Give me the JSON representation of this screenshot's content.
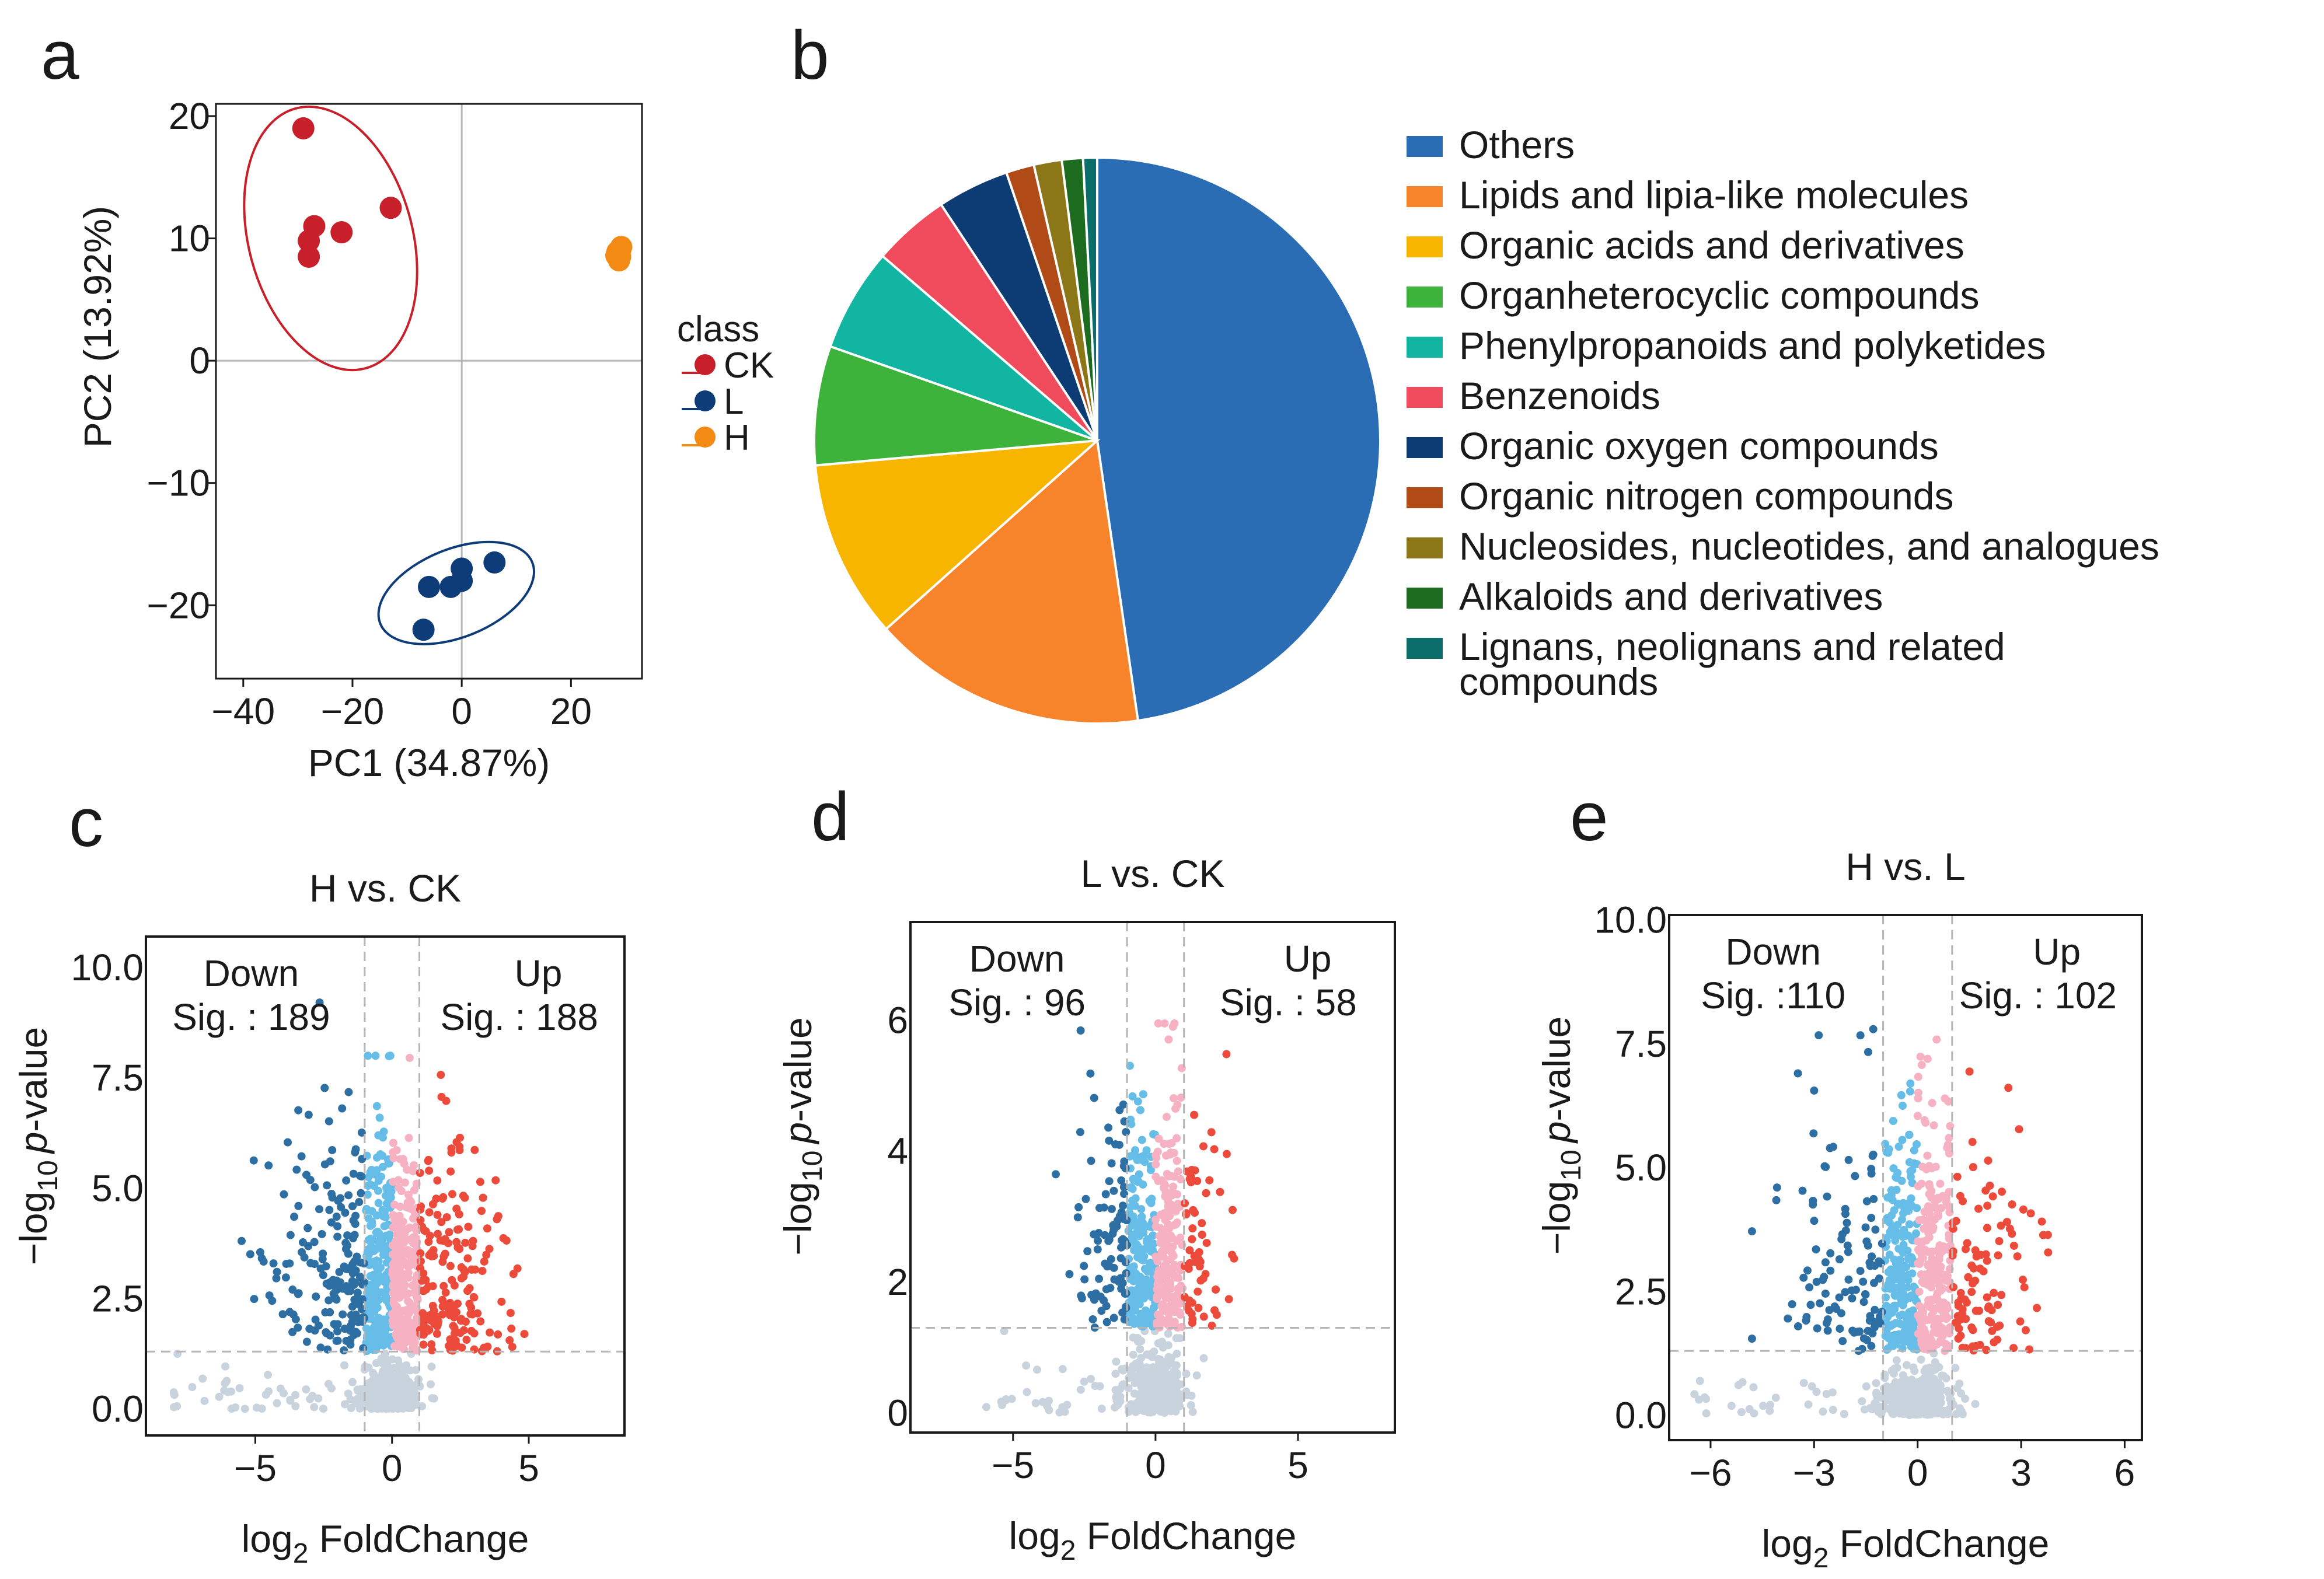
{
  "panels": {
    "a": "a",
    "b": "b",
    "c": "c",
    "d": "d",
    "e": "e"
  },
  "colors": {
    "ck": "#c8202a",
    "l": "#0d3c78",
    "h": "#f38a13",
    "down_strong": "#2e6fa3",
    "down_light": "#66bde8",
    "up_strong": "#ec4a3a",
    "up_light": "#f6b2c3",
    "ns": "#c9d3dd"
  },
  "pca": {
    "xlabel": "PC1 (34.87%)",
    "ylabel": "PC2 (13.92%)",
    "legend_title": "class",
    "xlim": [
      -45,
      33
    ],
    "ylim": [
      -26,
      21
    ],
    "xticks": [
      {
        "v": -40,
        "label": "−40"
      },
      {
        "v": -20,
        "label": "−20"
      },
      {
        "v": 0,
        "label": "0"
      },
      {
        "v": 20,
        "label": "20"
      }
    ],
    "yticks": [
      {
        "v": 20,
        "label": "20"
      },
      {
        "v": 10,
        "label": "10"
      },
      {
        "v": 0,
        "label": "0"
      },
      {
        "v": -10,
        "label": "−10"
      },
      {
        "v": -20,
        "label": "−20"
      }
    ],
    "groups": [
      {
        "name": "CK",
        "color": "#c8202a",
        "points": [
          [
            -29,
            19
          ],
          [
            -27,
            11
          ],
          [
            -22,
            10.5
          ],
          [
            -28,
            9.8
          ],
          [
            -28,
            8.5
          ],
          [
            -13,
            12.5
          ]
        ],
        "ellipse": {
          "cx": -24,
          "cy": 10,
          "rx": 15,
          "ry": 11,
          "rot": 15
        }
      },
      {
        "name": "L",
        "color": "#0d3c78",
        "points": [
          [
            -6,
            -18.5
          ],
          [
            -2,
            -18.5
          ],
          [
            0,
            -17
          ],
          [
            0,
            -18
          ],
          [
            6,
            -16.5
          ],
          [
            -7,
            -22
          ]
        ],
        "ellipse": {
          "cx": -1,
          "cy": -19,
          "rx": 15,
          "ry": 3.6,
          "rot": 22
        }
      },
      {
        "name": "H",
        "color": "#f38a13",
        "points": [
          [
            29,
            9
          ],
          [
            28.3,
            8.6
          ],
          [
            28.8,
            8.2
          ],
          [
            29.2,
            9.3
          ],
          [
            28.5,
            8.9
          ],
          [
            29,
            8.5
          ]
        ],
        "ellipse": {
          "cx": 28.8,
          "cy": 8.8,
          "rx": 1.2,
          "ry": 0.9,
          "rot": 0
        }
      }
    ]
  },
  "pie": {
    "items": [
      {
        "label": "Others",
        "value": 47.7,
        "color": "#2a6db5"
      },
      {
        "label": "Lipids and lipia-like molecules",
        "value": 15.7,
        "color": "#f7842a"
      },
      {
        "label": "Organic acids and derivatives",
        "value": 10.2,
        "color": "#f7b500"
      },
      {
        "label": "Organheterocyclic compounds",
        "value": 6.8,
        "color": "#3db33c"
      },
      {
        "label": "Phenylpropanoids and polyketides",
        "value": 5.9,
        "color": "#11b5a2"
      },
      {
        "label": "Benzenoids",
        "value": 4.4,
        "color": "#ef4b5c"
      },
      {
        "label": "Organic oxygen compounds",
        "value": 4.1,
        "color": "#0d3b73"
      },
      {
        "label": "Organic nitrogen compounds",
        "value": 1.6,
        "color": "#b04a17"
      },
      {
        "label": "Nucleosides, nucleotides, and analogues",
        "value": 1.6,
        "color": "#8c7718"
      },
      {
        "label": "Alkaloids and derivatives",
        "value": 1.2,
        "color": "#1c6b1f"
      },
      {
        "label": "Lignans, neolignans and related",
        "label2": "compounds",
        "value": 0.8,
        "color": "#0c6e6a"
      }
    ]
  },
  "chart_data": [
    {
      "type": "scatter",
      "title": "",
      "xlabel": "PC1 (34.87%)",
      "ylabel": "PC2 (13.92%)",
      "series": [
        {
          "name": "CK",
          "x": [
            -29,
            -27,
            -22,
            -28,
            -28,
            -13
          ],
          "y": [
            19,
            11,
            10.5,
            9.8,
            8.5,
            12.5
          ]
        },
        {
          "name": "L",
          "x": [
            -6,
            -2,
            0,
            0,
            6,
            -7
          ],
          "y": [
            -18.5,
            -18.5,
            -17,
            -18,
            -16.5,
            -22
          ]
        },
        {
          "name": "H",
          "x": [
            29,
            28.3,
            28.8,
            29.2,
            28.5,
            29
          ],
          "y": [
            9,
            8.6,
            8.2,
            9.3,
            8.9,
            8.5
          ]
        }
      ]
    },
    {
      "type": "pie",
      "categories": [
        "Others",
        "Lipids and lipia-like molecules",
        "Organic acids and derivatives",
        "Organheterocyclic compounds",
        "Phenylpropanoids and polyketides",
        "Benzenoids",
        "Organic oxygen compounds",
        "Organic nitrogen compounds",
        "Nucleosides, nucleotides, and analogues",
        "Alkaloids and derivatives",
        "Lignans, neolignans and related compounds"
      ],
      "values": [
        47.7,
        15.7,
        10.2,
        6.8,
        5.9,
        4.4,
        4.1,
        1.6,
        1.6,
        1.2,
        0.8
      ]
    },
    {
      "type": "scatter",
      "title": "H vs. CK",
      "xlabel": "log2 FoldChange",
      "ylabel": "−log10 p-value",
      "xlim": [
        -9,
        8.5
      ],
      "ylim": [
        -0.6,
        10.7
      ],
      "thresholds": {
        "fc": 1,
        "p": 1.3
      },
      "annotations": {
        "down_label": "Down",
        "down_sig": "Sig. : 189",
        "up_label": "Up",
        "up_sig": "Sig. : 188"
      }
    },
    {
      "type": "scatter",
      "title": "L vs. CK",
      "xlabel": "log2 FoldChange",
      "ylabel": "−log10 p-value",
      "xlim": [
        -8.6,
        8.4
      ],
      "ylim": [
        -0.3,
        7.5
      ],
      "thresholds": {
        "fc": 1,
        "p": 1.3
      },
      "annotations": {
        "down_label": "Down",
        "down_sig": "Sig. : 96",
        "up_label": "Up",
        "up_sig": "Sig. : 58"
      }
    },
    {
      "type": "scatter",
      "title": "H vs. L",
      "xlabel": "log2 FoldChange",
      "ylabel": "−log10 p-value",
      "xlim": [
        -7.2,
        6.5
      ],
      "ylim": [
        -0.5,
        10.1
      ],
      "thresholds": {
        "fc": 1,
        "p": 1.3
      },
      "annotations": {
        "down_label": "Down",
        "down_sig": "Sig. :110",
        "up_label": "Up",
        "up_sig": "Sig. : 102"
      }
    }
  ],
  "volcano": [
    {
      "title": "H vs. CK",
      "xlabel_log": "log",
      "xlabel_sub": "2",
      "xlabel_rest": " FoldChange",
      "ylabel_pre": "−log",
      "ylabel_sub": "10",
      "ylabel_p": "p",
      "ylabel_rest": "-value",
      "down_label": "Down",
      "down_sig": "Sig. : 189",
      "up_label": "Up",
      "up_sig": "Sig. : 188",
      "xlim": [
        -9,
        8.5
      ],
      "ylim": [
        -0.6,
        10.7
      ],
      "fc": 1,
      "p": 1.3,
      "maxx": 5.5,
      "maxy": 10,
      "seed": 11,
      "counts": {
        "ns": 420,
        "light_down": 260,
        "light_up": 260,
        "down": 189,
        "up": 188
      },
      "xticks": [
        {
          "v": -5,
          "label": "−5"
        },
        {
          "v": 0,
          "label": "0"
        },
        {
          "v": 5,
          "label": "5"
        }
      ],
      "yticks": [
        {
          "v": 0,
          "label": "0.0"
        },
        {
          "v": 2.5,
          "label": "2.5"
        },
        {
          "v": 5,
          "label": "5.0"
        },
        {
          "v": 7.5,
          "label": "7.5"
        },
        {
          "v": 10,
          "label": "10.0"
        }
      ]
    },
    {
      "title": "L vs. CK",
      "xlabel_log": "log",
      "xlabel_sub": "2",
      "xlabel_rest": " FoldChange",
      "ylabel_pre": "−log",
      "ylabel_sub": "10",
      "ylabel_p": "p",
      "ylabel_rest": "-value",
      "down_label": "Down",
      "down_sig": "Sig. : 96",
      "up_label": "Up",
      "up_sig": "Sig. : 58",
      "xlim": [
        -8.6,
        8.4
      ],
      "ylim": [
        -0.3,
        7.5
      ],
      "fc": 1,
      "p": 1.3,
      "maxx": 3.5,
      "maxy": 7,
      "seed": 23,
      "counts": {
        "ns": 380,
        "light_down": 200,
        "light_up": 200,
        "down": 96,
        "up": 58
      },
      "xticks": [
        {
          "v": -5,
          "label": "−5"
        },
        {
          "v": 0,
          "label": "0"
        },
        {
          "v": 5,
          "label": "5"
        }
      ],
      "yticks": [
        {
          "v": 0,
          "label": "0"
        },
        {
          "v": 2,
          "label": "2"
        },
        {
          "v": 4,
          "label": "4"
        },
        {
          "v": 6,
          "label": "6"
        }
      ]
    },
    {
      "title": "H vs. L",
      "xlabel_log": "log",
      "xlabel_sub": "2",
      "xlabel_rest": " FoldChange",
      "ylabel_pre": "−log",
      "ylabel_sub": "10",
      "ylabel_p": "p",
      "ylabel_rest": "-value",
      "down_label": "Down",
      "down_sig": "Sig. :110",
      "up_label": "Up",
      "up_sig": "Sig. : 102",
      "xlim": [
        -7.2,
        6.5
      ],
      "ylim": [
        -0.5,
        10.1
      ],
      "fc": 1,
      "p": 1.3,
      "maxx": 4.8,
      "maxy": 9.5,
      "seed": 37,
      "counts": {
        "ns": 400,
        "light_down": 230,
        "light_up": 230,
        "down": 110,
        "up": 102
      },
      "xticks": [
        {
          "v": -6,
          "label": "−6"
        },
        {
          "v": -3,
          "label": "−3"
        },
        {
          "v": 0,
          "label": "0"
        },
        {
          "v": 3,
          "label": "3"
        },
        {
          "v": 6,
          "label": "6"
        }
      ],
      "yticks": [
        {
          "v": 0,
          "label": "0.0"
        },
        {
          "v": 2.5,
          "label": "2.5"
        },
        {
          "v": 5,
          "label": "5.0"
        },
        {
          "v": 7.5,
          "label": "7.5"
        },
        {
          "v": 10,
          "label": "10.0"
        }
      ]
    }
  ]
}
